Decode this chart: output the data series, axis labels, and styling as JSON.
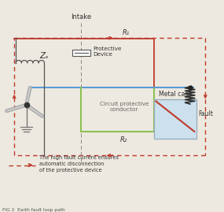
{
  "title": "FIG 2  Earth fault loop path",
  "bg_color": "#ede9e0",
  "intake_label": "Intake",
  "protective_device_label": "Protective\nDevice",
  "metal_case_label": "Metal case",
  "fault_label": "Fault",
  "r1_label": "R₁",
  "r2_label": "R₂",
  "za_label": "Zₐ",
  "cpc_label": "Circuit protective\nconductor",
  "legend_text": "The high fault current ensures\nautomatic disconnection\nof the protective device",
  "dashed_red": "#c0392b",
  "blue_line": "#5b9bd5",
  "green_line": "#8dc050",
  "orange_line": "#c0392b",
  "box_bg": "#cce0ee",
  "box_border": "#9ab0be"
}
